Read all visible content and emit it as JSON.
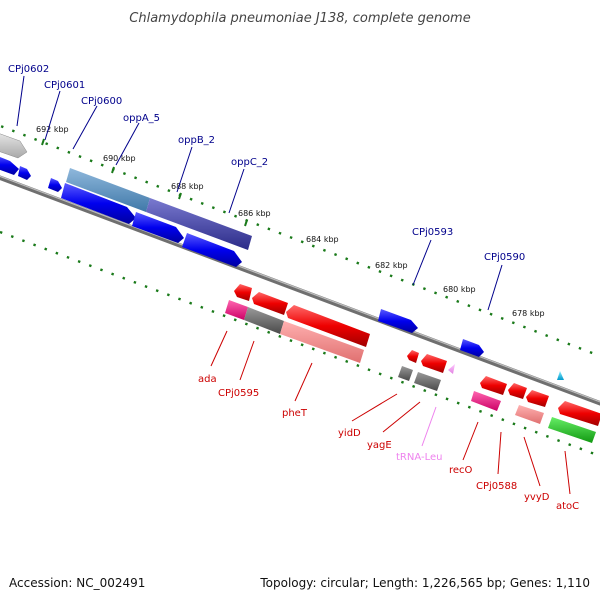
{
  "title": "Chlamydophila pneumoniae J138, complete genome",
  "footer": {
    "accession": "Accession: NC_002491",
    "summary": "Topology: circular; Length: 1,226,565 bp; Genes: 1,110"
  },
  "colors": {
    "plus_label": "#00008b",
    "minus_label": "#cc0000",
    "trna_label": "#ee82ee",
    "backbone": "#808080",
    "tick": "#1a7a1a"
  },
  "ticks": [
    {
      "label": "692 kbp"
    },
    {
      "label": "690 kbp"
    },
    {
      "label": "688 kbp"
    },
    {
      "label": "686 kbp"
    },
    {
      "label": "684 kbp"
    },
    {
      "label": "682 kbp"
    },
    {
      "label": "680 kbp"
    },
    {
      "label": "678 kbp"
    }
  ],
  "top_genes": [
    {
      "name": "CPj0602"
    },
    {
      "name": "CPj0601"
    },
    {
      "name": "CPj0600"
    },
    {
      "name": "oppA_5"
    },
    {
      "name": "oppB_2"
    },
    {
      "name": "oppC_2"
    },
    {
      "name": "CPj0593"
    },
    {
      "name": "CPj0590"
    }
  ],
  "bottom_genes": [
    {
      "name": "ada"
    },
    {
      "name": "CPj0595"
    },
    {
      "name": "pheT"
    },
    {
      "name": "yidD"
    },
    {
      "name": "yagE"
    },
    {
      "name": "tRNA-Leu"
    },
    {
      "name": "recO"
    },
    {
      "name": "CPj0588"
    },
    {
      "name": "yvyD"
    },
    {
      "name": "atoC"
    }
  ]
}
